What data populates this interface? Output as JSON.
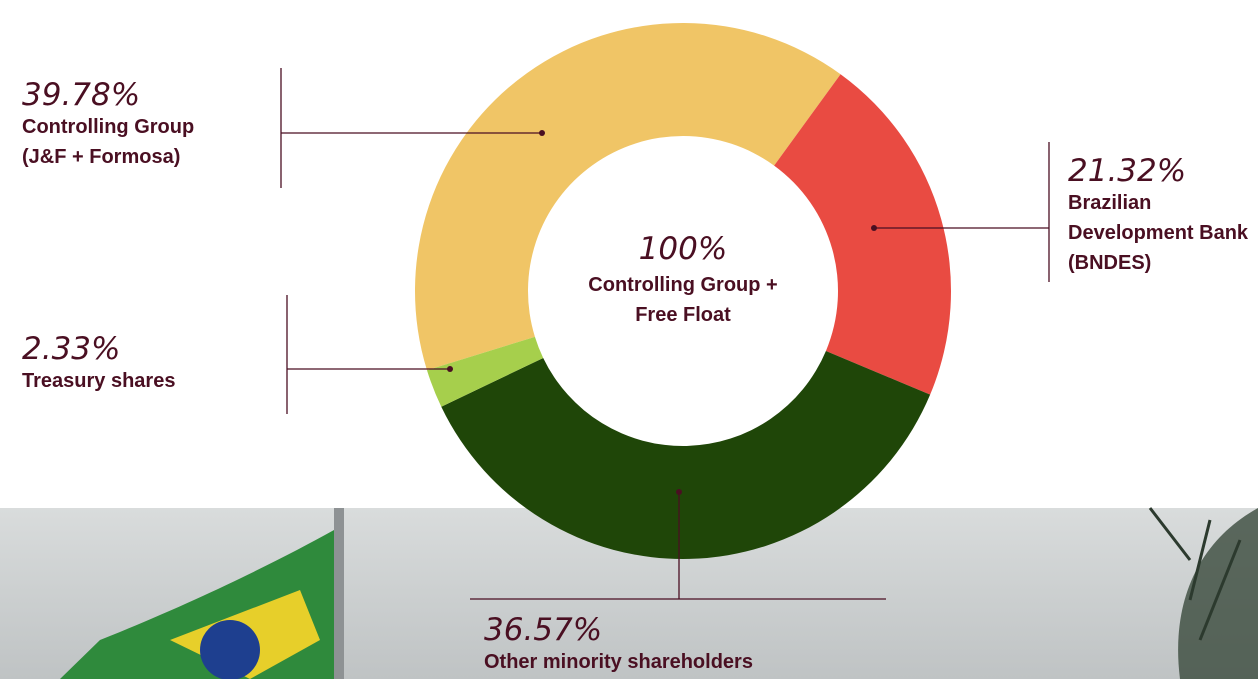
{
  "chart_data": {
    "type": "pie",
    "center_label": "100%",
    "center_text": "Controlling Group + Free Float",
    "series": [
      {
        "name": "Controlling Group (J&F + Formosa)",
        "values": [
          39.78
        ],
        "value_labels": [
          "39.78%"
        ],
        "color": "#f0c566"
      },
      {
        "name": "Brazilian Development Bank (BNDES)",
        "values": [
          21.32
        ],
        "value_labels": [
          "21.32%"
        ],
        "color": "#e94b42"
      },
      {
        "name": "Other minority shareholders",
        "values": [
          36.57
        ],
        "value_labels": [
          "36.57%"
        ],
        "color": "#1f4608"
      },
      {
        "name": "Treasury shares",
        "values": [
          2.33
        ],
        "value_labels": [
          "2.33%"
        ],
        "color": "#a6cf4c"
      }
    ]
  }
}
